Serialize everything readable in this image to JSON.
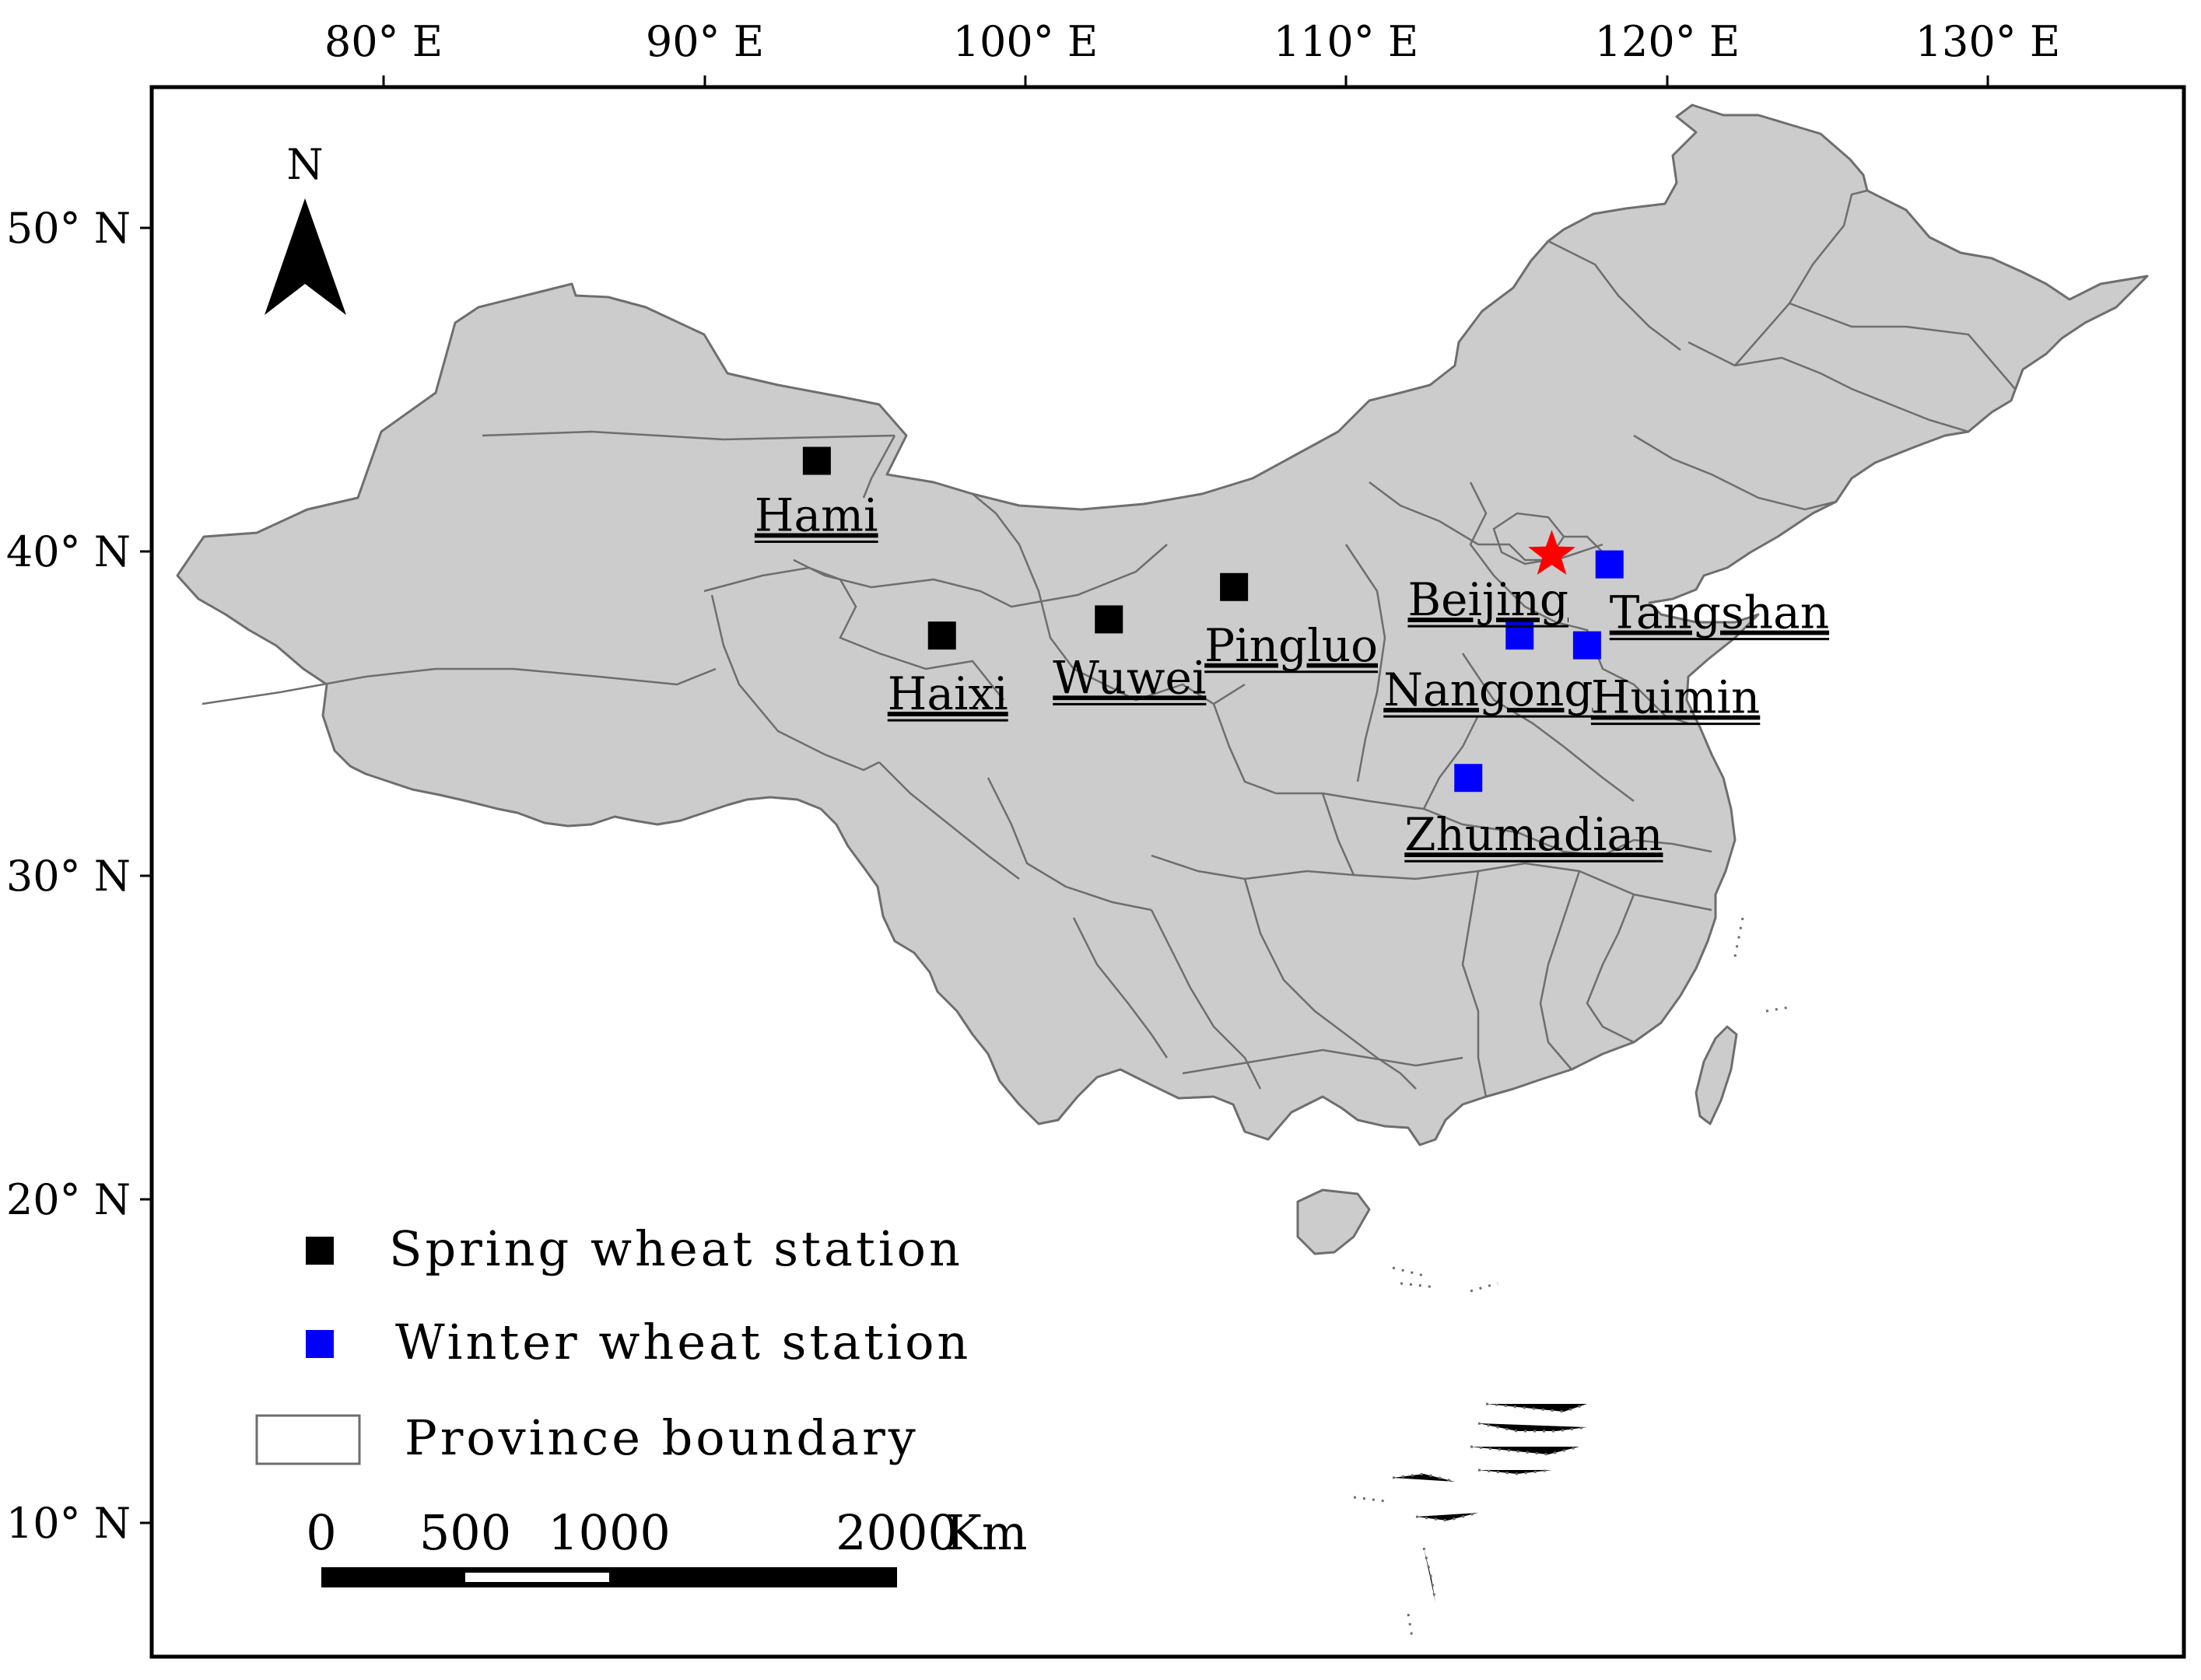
{
  "map": {
    "lon_ticks": [
      "80° E",
      "90° E",
      "100° E",
      "110° E",
      "120° E",
      "130° E"
    ],
    "lat_ticks": [
      "50° N",
      "40° N",
      "30° N",
      "20° N",
      "10° N"
    ],
    "north_label": "N",
    "colors": {
      "land": "#cccccc",
      "boundary": "#6e6e6e",
      "spring": "#000000",
      "winter": "#0000ff",
      "capital": "#ff0000"
    },
    "capital": {
      "name": "Beijing",
      "lon": 116.4,
      "lat": 39.9
    },
    "stations": [
      {
        "name": "Hami",
        "type": "spring",
        "lon": 93.5,
        "lat": 42.8
      },
      {
        "name": "Haixi",
        "type": "spring",
        "lon": 97.4,
        "lat": 37.4
      },
      {
        "name": "Wuwei",
        "type": "spring",
        "lon": 102.6,
        "lat": 37.9
      },
      {
        "name": "Pingluo",
        "type": "spring",
        "lon": 106.5,
        "lat": 38.9
      },
      {
        "name": "Tangshan",
        "type": "winter",
        "lon": 118.2,
        "lat": 39.6
      },
      {
        "name": "Nangong",
        "type": "winter",
        "lon": 115.4,
        "lat": 37.4
      },
      {
        "name": "Huimin",
        "type": "winter",
        "lon": 117.5,
        "lat": 37.1
      },
      {
        "name": "Zhumadian",
        "type": "winter",
        "lon": 113.8,
        "lat": 33.0
      }
    ]
  },
  "legend": {
    "spring": "Spring wheat station",
    "winter": "Winter wheat station",
    "province": "Province boundary"
  },
  "scale_bar": {
    "labels": [
      "0",
      "500",
      "1000",
      "2000"
    ],
    "unit": "Km"
  }
}
